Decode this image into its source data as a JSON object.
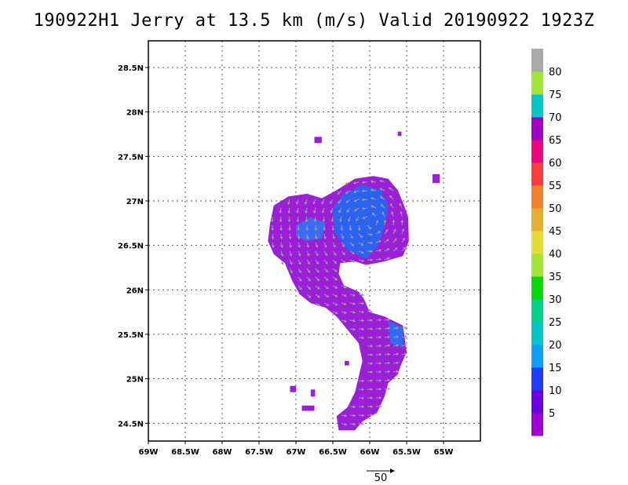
{
  "chart_data": {
    "type": "vector-field",
    "title": "190922H1 Jerry at 13.5 km (m/s) Valid 20190922 1923Z",
    "xlabel": "",
    "ylabel": "",
    "xlim": [
      -69,
      -64.5
    ],
    "ylim": [
      24.3,
      28.8
    ],
    "grid": true,
    "x_ticks": [
      {
        "value": -69,
        "label": "69W"
      },
      {
        "value": -68.5,
        "label": "68.5W"
      },
      {
        "value": -68,
        "label": "68W"
      },
      {
        "value": -67.5,
        "label": "67.5W"
      },
      {
        "value": -67,
        "label": "67W"
      },
      {
        "value": -66.5,
        "label": "66.5W"
      },
      {
        "value": -66,
        "label": "66W"
      },
      {
        "value": -65.5,
        "label": "65.5W"
      },
      {
        "value": -65,
        "label": "65W"
      }
    ],
    "y_ticks": [
      {
        "value": 24.5,
        "label": "24.5N"
      },
      {
        "value": 25,
        "label": "25N"
      },
      {
        "value": 25.5,
        "label": "25.5N"
      },
      {
        "value": 26,
        "label": "26N"
      },
      {
        "value": 26.5,
        "label": "26.5N"
      },
      {
        "value": 27,
        "label": "27N"
      },
      {
        "value": 27.5,
        "label": "27.5N"
      },
      {
        "value": 28,
        "label": "28N"
      },
      {
        "value": 28.5,
        "label": "28.5N"
      }
    ],
    "colorbar": {
      "labels": [
        "5",
        "10",
        "15",
        "20",
        "25",
        "30",
        "35",
        "40",
        "45",
        "50",
        "55",
        "60",
        "65",
        "70",
        "75",
        "80"
      ],
      "colors": [
        "#a000d0",
        "#6a00e6",
        "#1e3cff",
        "#0ca0ff",
        "#00c8c8",
        "#00d28c",
        "#00dc00",
        "#a0e632",
        "#e6dc32",
        "#e6af2d",
        "#f08228",
        "#fa3c3c",
        "#f00082",
        "#a000c8",
        "#00c8c8",
        "#a0e632",
        "#aaaaaa"
      ]
    },
    "reference_vector": {
      "value": 50,
      "label": "50"
    },
    "regions": [
      {
        "name": "main",
        "color": "#9a1fd6",
        "points": [
          [
            -67.35,
            26.75
          ],
          [
            -67.3,
            26.95
          ],
          [
            -67.1,
            27.05
          ],
          [
            -66.85,
            27.08
          ],
          [
            -66.65,
            27.03
          ],
          [
            -66.45,
            27.12
          ],
          [
            -66.2,
            27.25
          ],
          [
            -65.95,
            27.28
          ],
          [
            -65.75,
            27.25
          ],
          [
            -65.62,
            27.12
          ],
          [
            -65.55,
            26.98
          ],
          [
            -65.48,
            26.82
          ],
          [
            -65.47,
            26.55
          ],
          [
            -65.55,
            26.38
          ],
          [
            -65.8,
            26.32
          ],
          [
            -66.05,
            26.28
          ],
          [
            -66.2,
            26.32
          ],
          [
            -66.4,
            26.3
          ],
          [
            -66.42,
            26.18
          ],
          [
            -66.35,
            26.05
          ],
          [
            -66.15,
            25.98
          ],
          [
            -66.08,
            25.9
          ],
          [
            -66.0,
            25.75
          ],
          [
            -65.8,
            25.7
          ],
          [
            -65.55,
            25.6
          ],
          [
            -65.5,
            25.3
          ],
          [
            -65.58,
            25.15
          ],
          [
            -65.62,
            25.05
          ],
          [
            -65.75,
            24.95
          ],
          [
            -65.8,
            24.8
          ],
          [
            -65.9,
            24.62
          ],
          [
            -66.1,
            24.52
          ],
          [
            -66.2,
            24.42
          ],
          [
            -66.42,
            24.42
          ],
          [
            -66.45,
            24.58
          ],
          [
            -66.3,
            24.68
          ],
          [
            -66.2,
            24.85
          ],
          [
            -66.15,
            25.02
          ],
          [
            -66.1,
            25.2
          ],
          [
            -66.15,
            25.4
          ],
          [
            -66.3,
            25.55
          ],
          [
            -66.45,
            25.7
          ],
          [
            -66.6,
            25.8
          ],
          [
            -66.8,
            25.85
          ],
          [
            -66.95,
            25.95
          ],
          [
            -67.05,
            26.1
          ],
          [
            -67.15,
            26.3
          ],
          [
            -67.3,
            26.4
          ],
          [
            -67.38,
            26.55
          ]
        ]
      },
      {
        "name": "blue-core",
        "color": "#2b63f0",
        "points": [
          [
            -66.5,
            26.92
          ],
          [
            -66.35,
            27.08
          ],
          [
            -66.1,
            27.18
          ],
          [
            -65.85,
            27.12
          ],
          [
            -65.75,
            26.95
          ],
          [
            -65.8,
            26.7
          ],
          [
            -65.9,
            26.48
          ],
          [
            -66.05,
            26.35
          ],
          [
            -66.3,
            26.45
          ],
          [
            -66.48,
            26.65
          ]
        ]
      },
      {
        "name": "blue-west",
        "color": "#3a6cf0",
        "points": [
          [
            -67.0,
            26.72
          ],
          [
            -66.8,
            26.82
          ],
          [
            -66.6,
            26.75
          ],
          [
            -66.65,
            26.58
          ],
          [
            -66.85,
            26.55
          ],
          [
            -67.0,
            26.6
          ]
        ]
      },
      {
        "name": "blue-south",
        "color": "#2f6af0",
        "points": [
          [
            -65.75,
            25.65
          ],
          [
            -65.55,
            25.58
          ],
          [
            -65.55,
            25.35
          ],
          [
            -65.72,
            25.4
          ]
        ]
      }
    ],
    "speckles": [
      {
        "color": "#9a1fd6",
        "points": [
          [
            -66.75,
            27.72
          ],
          [
            -66.65,
            27.72
          ],
          [
            -66.65,
            27.65
          ],
          [
            -66.75,
            27.65
          ]
        ]
      },
      {
        "color": "#9a1fd6",
        "points": [
          [
            -65.62,
            27.78
          ],
          [
            -65.57,
            27.78
          ],
          [
            -65.57,
            27.73
          ],
          [
            -65.62,
            27.73
          ]
        ]
      },
      {
        "color": "#9a1fd6",
        "points": [
          [
            -65.15,
            27.3
          ],
          [
            -65.05,
            27.3
          ],
          [
            -65.05,
            27.2
          ],
          [
            -65.15,
            27.2
          ]
        ]
      },
      {
        "color": "#9a1fd6",
        "points": [
          [
            -67.08,
            24.92
          ],
          [
            -67.0,
            24.92
          ],
          [
            -67.0,
            24.85
          ],
          [
            -67.08,
            24.85
          ]
        ]
      },
      {
        "color": "#9a1fd6",
        "points": [
          [
            -66.8,
            24.88
          ],
          [
            -66.74,
            24.88
          ],
          [
            -66.74,
            24.8
          ],
          [
            -66.8,
            24.8
          ]
        ]
      },
      {
        "color": "#9a1fd6",
        "points": [
          [
            -66.92,
            24.7
          ],
          [
            -66.75,
            24.7
          ],
          [
            -66.75,
            24.64
          ],
          [
            -66.92,
            24.64
          ]
        ]
      },
      {
        "color": "#9a1fd6",
        "points": [
          [
            -66.72,
            26.05
          ],
          [
            -66.66,
            26.05
          ],
          [
            -66.66,
            26.0
          ],
          [
            -66.72,
            26.0
          ]
        ]
      },
      {
        "color": "#9a1fd6",
        "points": [
          [
            -66.34,
            25.2
          ],
          [
            -66.28,
            25.2
          ],
          [
            -66.28,
            25.15
          ],
          [
            -66.34,
            25.15
          ]
        ]
      }
    ]
  }
}
